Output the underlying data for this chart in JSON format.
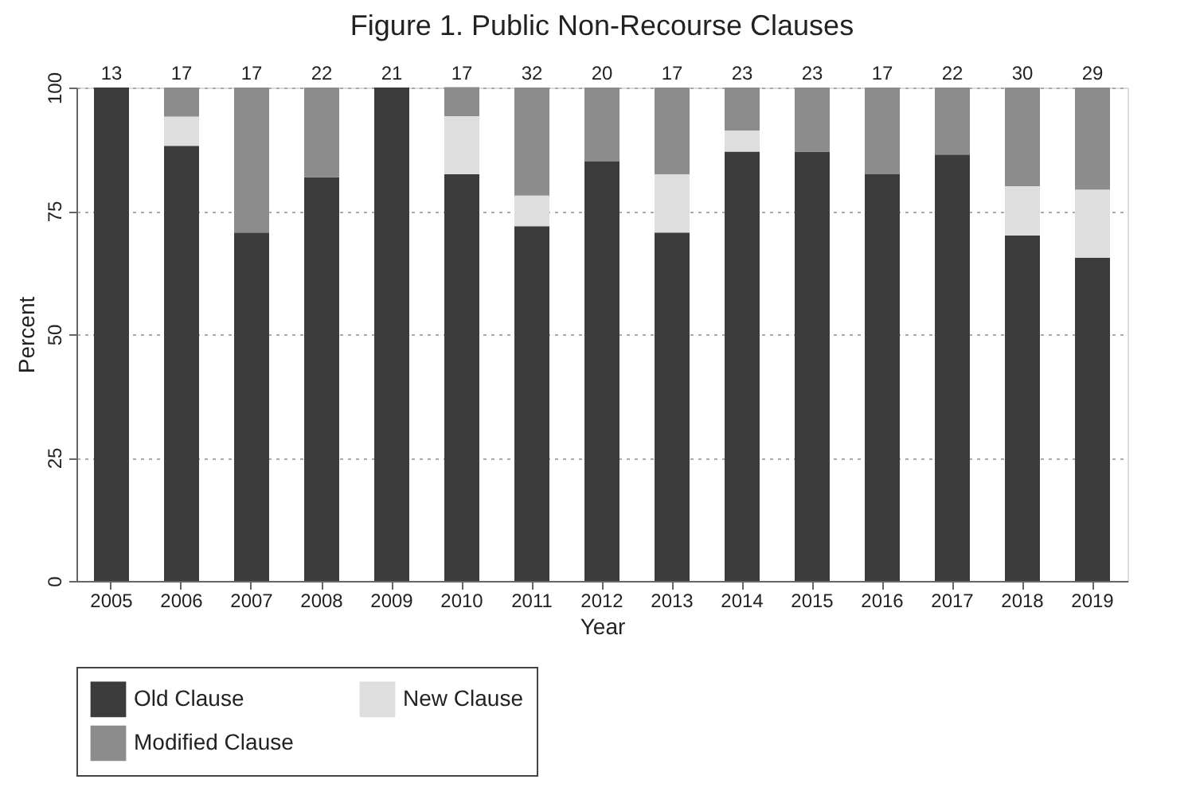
{
  "chart_data": {
    "type": "bar",
    "title": "Figure 1. Public Non-Recourse Clauses",
    "xlabel": "Year",
    "ylabel": "Percent",
    "categories": [
      "2005",
      "2006",
      "2007",
      "2008",
      "2009",
      "2010",
      "2011",
      "2012",
      "2013",
      "2014",
      "2015",
      "2016",
      "2017",
      "2018",
      "2019"
    ],
    "stacked": true,
    "series": [
      {
        "name": "Old Clause",
        "color": "#3c3c3c",
        "values": [
          100,
          88.2,
          70.6,
          81.8,
          100,
          82.4,
          71.9,
          85,
          70.6,
          87.0,
          87.0,
          82.4,
          86.4,
          70,
          65.5
        ]
      },
      {
        "name": "New Clause",
        "color": "#dedede",
        "values": [
          0,
          5.9,
          0,
          0,
          0,
          11.8,
          6.2,
          0,
          11.8,
          4.3,
          0,
          0,
          0,
          10,
          13.8
        ]
      },
      {
        "name": "Modified Clause",
        "color": "#8c8c8c",
        "values": [
          0,
          5.9,
          29.4,
          18.2,
          0,
          5.9,
          21.9,
          15,
          17.6,
          8.7,
          13.0,
          17.6,
          13.6,
          20,
          20.7
        ]
      }
    ],
    "annotations": [
      "13",
      "17",
      "17",
      "22",
      "21",
      "17",
      "32",
      "20",
      "17",
      "23",
      "23",
      "17",
      "22",
      "30",
      "29"
    ],
    "ylim": [
      0,
      100
    ],
    "yticks": [
      0,
      25,
      50,
      75,
      100
    ],
    "grid": "y",
    "legend": "bottom"
  }
}
